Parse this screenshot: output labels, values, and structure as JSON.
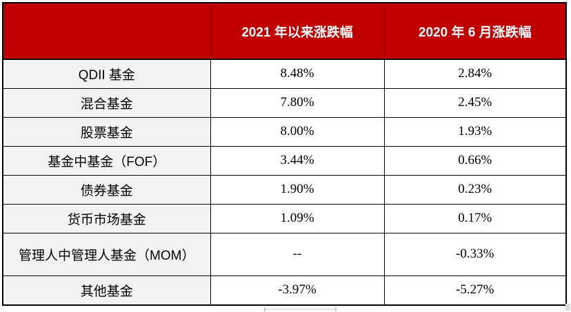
{
  "chart_data": {
    "type": "table",
    "title": "",
    "row_header_label": "",
    "categories": [
      "QDII 基金",
      "混合基金",
      "股票基金",
      "基金中基金（FOF）",
      "债券基金",
      "货币市场基金",
      "管理人中管理人基金（MOM）",
      "其他基金"
    ],
    "series": [
      {
        "name": "2021 年以来涨跌幅",
        "values": [
          "8.48%",
          "7.80%",
          "8.00%",
          "3.44%",
          "1.90%",
          "1.09%",
          "--",
          "-3.97%"
        ]
      },
      {
        "name": "2020 年 6 月涨跌幅",
        "values": [
          "2.84%",
          "2.45%",
          "1.93%",
          "0.66%",
          "0.23%",
          "0.17%",
          "-0.33%",
          "-5.27%"
        ]
      }
    ],
    "layout": {
      "header_background": "#C00000",
      "header_text_color": "#FFFFFF",
      "label_column_background": "#F2F2F2",
      "value_cell_background": "#FFFFFF",
      "grid_border_color": "#000000",
      "grid": "on"
    }
  }
}
